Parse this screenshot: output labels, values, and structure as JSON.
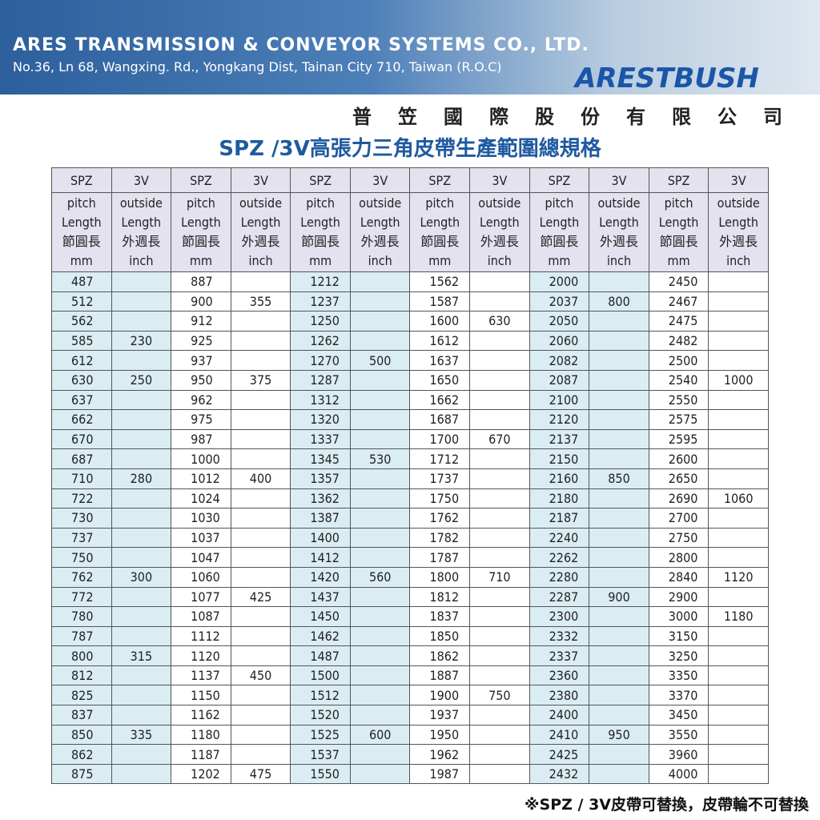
{
  "header": {
    "company": "ARES TRANSMISSION & CONVEYOR SYSTEMS CO., LTD.",
    "address": "No.36, Ln 68, Wangxing. Rd., Yongkang Dist, Tainan City 710, Taiwan (R.O.C)",
    "logo": "ARESTBUSH",
    "company_zh": "普笠國際股份有限公司"
  },
  "title": "SPZ /3V高張力三角皮帶生產範圍總規格",
  "table": {
    "group_header": {
      "spz": "SPZ",
      "v3": "3V"
    },
    "sub_header": {
      "spz": [
        "pitch",
        "Length",
        "節圓長",
        "mm"
      ],
      "v3": [
        "outside",
        "Length",
        "外週長",
        "inch"
      ]
    },
    "rows": [
      [
        487,
        null,
        887,
        null,
        1212,
        null,
        1562,
        null,
        2000,
        null,
        2450,
        null
      ],
      [
        512,
        null,
        900,
        355,
        1237,
        null,
        1587,
        null,
        2037,
        800,
        2467,
        null
      ],
      [
        562,
        null,
        912,
        null,
        1250,
        null,
        1600,
        630,
        2050,
        null,
        2475,
        null
      ],
      [
        585,
        230,
        925,
        null,
        1262,
        null,
        1612,
        null,
        2060,
        null,
        2482,
        null
      ],
      [
        612,
        null,
        937,
        null,
        1270,
        500,
        1637,
        null,
        2082,
        null,
        2500,
        null
      ],
      [
        630,
        250,
        950,
        375,
        1287,
        null,
        1650,
        null,
        2087,
        null,
        2540,
        1000
      ],
      [
        637,
        null,
        962,
        null,
        1312,
        null,
        1662,
        null,
        2100,
        null,
        2550,
        null
      ],
      [
        662,
        null,
        975,
        null,
        1320,
        null,
        1687,
        null,
        2120,
        null,
        2575,
        null
      ],
      [
        670,
        null,
        987,
        null,
        1337,
        null,
        1700,
        670,
        2137,
        null,
        2595,
        null
      ],
      [
        687,
        null,
        1000,
        null,
        1345,
        530,
        1712,
        null,
        2150,
        null,
        2600,
        null
      ],
      [
        710,
        280,
        1012,
        400,
        1357,
        null,
        1737,
        null,
        2160,
        850,
        2650,
        null
      ],
      [
        722,
        null,
        1024,
        null,
        1362,
        null,
        1750,
        null,
        2180,
        null,
        2690,
        1060
      ],
      [
        730,
        null,
        1030,
        null,
        1387,
        null,
        1762,
        null,
        2187,
        null,
        2700,
        null
      ],
      [
        737,
        null,
        1037,
        null,
        1400,
        null,
        1782,
        null,
        2240,
        null,
        2750,
        null
      ],
      [
        750,
        null,
        1047,
        null,
        1412,
        null,
        1787,
        null,
        2262,
        null,
        2800,
        null
      ],
      [
        762,
        300,
        1060,
        null,
        1420,
        560,
        1800,
        710,
        2280,
        null,
        2840,
        1120
      ],
      [
        772,
        null,
        1077,
        425,
        1437,
        null,
        1812,
        null,
        2287,
        900,
        2900,
        null
      ],
      [
        780,
        null,
        1087,
        null,
        1450,
        null,
        1837,
        null,
        2300,
        null,
        3000,
        1180
      ],
      [
        787,
        null,
        1112,
        null,
        1462,
        null,
        1850,
        null,
        2332,
        null,
        3150,
        null
      ],
      [
        800,
        315,
        1120,
        null,
        1487,
        null,
        1862,
        null,
        2337,
        null,
        3250,
        null
      ],
      [
        812,
        null,
        1137,
        450,
        1500,
        null,
        1887,
        null,
        2360,
        null,
        3350,
        null
      ],
      [
        825,
        null,
        1150,
        null,
        1512,
        null,
        1900,
        750,
        2380,
        null,
        3370,
        null
      ],
      [
        837,
        null,
        1162,
        null,
        1520,
        null,
        1937,
        null,
        2400,
        null,
        3450,
        null
      ],
      [
        850,
        335,
        1180,
        null,
        1525,
        600,
        1950,
        null,
        2410,
        950,
        3550,
        null
      ],
      [
        862,
        null,
        1187,
        null,
        1537,
        null,
        1962,
        null,
        2425,
        null,
        3960,
        null
      ],
      [
        875,
        null,
        1202,
        475,
        1550,
        null,
        1987,
        null,
        2432,
        null,
        4000,
        null
      ]
    ]
  },
  "footer": "※SPZ / 3V皮帶可替換，皮帶輪不可替換"
}
